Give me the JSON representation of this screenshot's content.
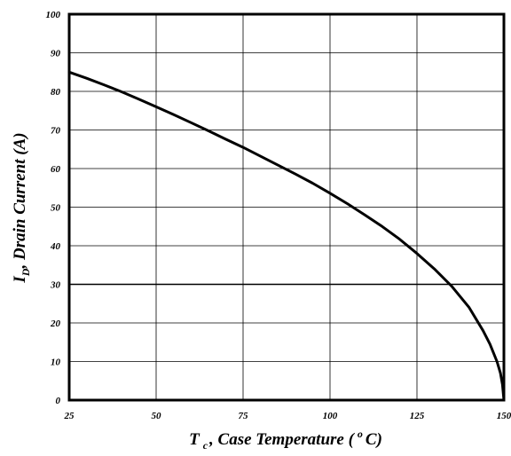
{
  "chart_data": {
    "type": "line",
    "title": "",
    "xlabel": {
      "symbol": "T",
      "subscript": "c",
      "rest": ", Case Temperature (",
      "superscript": "o",
      "unit": "C)"
    },
    "ylabel": {
      "symbol": "I",
      "subscript": "D",
      "rest": ", Drain Current (A)"
    },
    "xlim": [
      25,
      150
    ],
    "ylim": [
      0,
      100
    ],
    "xticks": [
      25,
      50,
      75,
      100,
      125,
      150
    ],
    "yticks": [
      0,
      10,
      20,
      30,
      40,
      50,
      60,
      70,
      80,
      90,
      100
    ],
    "grid": true,
    "series": [
      {
        "x": [
          25,
          30,
          35,
          40,
          45,
          50,
          55,
          60,
          65,
          70,
          75,
          80,
          85,
          90,
          95,
          100,
          105,
          110,
          115,
          120,
          125,
          130,
          135,
          140,
          144,
          146,
          148,
          149,
          149.6,
          150
        ],
        "y": [
          85,
          83.4,
          81.7,
          79.9,
          78,
          76,
          74,
          71.9,
          69.8,
          67.6,
          65.5,
          63.2,
          60.9,
          58.6,
          56.2,
          53.6,
          50.9,
          48,
          45,
          41.7,
          38,
          34,
          29.5,
          24,
          18,
          14.5,
          10,
          7,
          4,
          0
        ]
      }
    ],
    "colors": {
      "line": "#000000",
      "grid": "#000000",
      "frame": "#000000"
    }
  }
}
